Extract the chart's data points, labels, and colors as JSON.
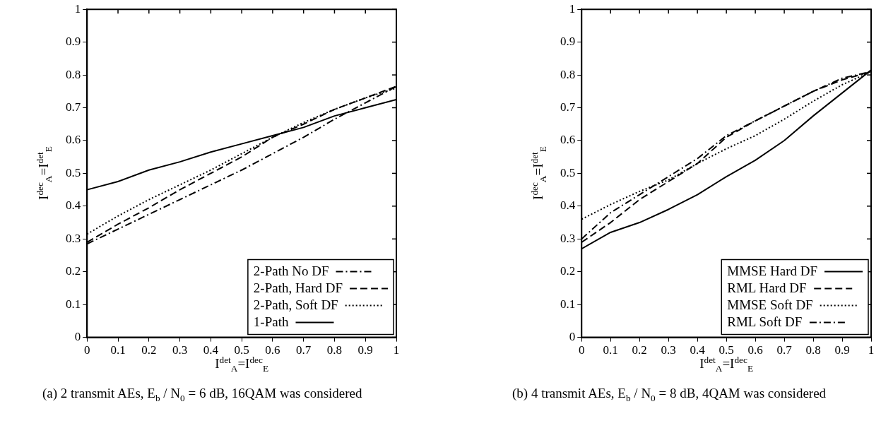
{
  "chart_data": [
    {
      "type": "line",
      "xlabel": "I$^{det}$$_{A}$=I$^{dec}$$_{E}$",
      "ylabel": "I$^{dec}$$_{A}$=I$^{det}$$_{E}$",
      "annotations": [
        "(a) 2 transmit AEs, E$_{b}$ / N$_{0}$ = 6 dB, 16QAM was considered"
      ],
      "x": [
        0,
        0.1,
        0.2,
        0.3,
        0.4,
        0.5,
        0.6,
        0.7,
        0.8,
        0.9,
        1
      ],
      "xlim": [
        0,
        1
      ],
      "ylim": [
        0,
        1
      ],
      "xticks": [
        0,
        0.1,
        0.2,
        0.3,
        0.4,
        0.5,
        0.6,
        0.7,
        0.8,
        0.9,
        1
      ],
      "yticks": [
        0,
        0.1,
        0.2,
        0.3,
        0.4,
        0.5,
        0.6,
        0.7,
        0.8,
        0.9,
        1
      ],
      "legend": "bottom right",
      "series": [
        {
          "name": "2-Path No DF",
          "color": "#000000",
          "line_style": "dashdot",
          "values": [
            0.285,
            0.33,
            0.375,
            0.42,
            0.465,
            0.51,
            0.56,
            0.61,
            0.665,
            0.715,
            0.765
          ]
        },
        {
          "name": "2-Path, Hard DF",
          "color": "#000000",
          "line_style": "dashed",
          "values": [
            0.29,
            0.345,
            0.395,
            0.45,
            0.5,
            0.55,
            0.61,
            0.65,
            0.695,
            0.73,
            0.765
          ]
        },
        {
          "name": "2-Path, Soft DF",
          "color": "#000000",
          "line_style": "dotted",
          "values": [
            0.315,
            0.37,
            0.42,
            0.465,
            0.51,
            0.56,
            0.61,
            0.655,
            0.695,
            0.73,
            0.76
          ]
        },
        {
          "name": "1-Path",
          "color": "#000000",
          "line_style": "solid",
          "values": [
            0.45,
            0.475,
            0.51,
            0.535,
            0.565,
            0.59,
            0.615,
            0.64,
            0.675,
            0.7,
            0.725
          ]
        }
      ]
    },
    {
      "type": "line",
      "xlabel": "I$^{det}$$_{A}$=I$^{dec}$$_{E}$",
      "ylabel": "I$^{dec}$$_{A}$=I$^{det}$$_{E}$",
      "annotations": [
        "(b) 4 transmit AEs, E$_{b}$ / N$_{0}$ = 8 dB, 4QAM was considered"
      ],
      "x": [
        0,
        0.1,
        0.2,
        0.3,
        0.4,
        0.5,
        0.6,
        0.7,
        0.8,
        0.9,
        1
      ],
      "xlim": [
        0,
        1
      ],
      "ylim": [
        0,
        1
      ],
      "xticks": [
        0,
        0.1,
        0.2,
        0.3,
        0.4,
        0.5,
        0.6,
        0.7,
        0.8,
        0.9,
        1
      ],
      "yticks": [
        0,
        0.1,
        0.2,
        0.3,
        0.4,
        0.5,
        0.6,
        0.7,
        0.8,
        0.9,
        1
      ],
      "legend": "bottom right",
      "series": [
        {
          "name": "MMSE Hard DF",
          "color": "#000000",
          "line_style": "solid",
          "values": [
            0.27,
            0.32,
            0.35,
            0.39,
            0.435,
            0.49,
            0.54,
            0.6,
            0.675,
            0.745,
            0.815
          ]
        },
        {
          "name": "RML Hard DF",
          "color": "#000000",
          "line_style": "dashed",
          "values": [
            0.29,
            0.35,
            0.42,
            0.475,
            0.53,
            0.61,
            0.66,
            0.705,
            0.75,
            0.785,
            0.81
          ]
        },
        {
          "name": "MMSE Soft DF",
          "color": "#000000",
          "line_style": "dotted",
          "values": [
            0.36,
            0.405,
            0.445,
            0.48,
            0.53,
            0.575,
            0.615,
            0.665,
            0.72,
            0.77,
            0.81
          ]
        },
        {
          "name": "RML Soft DF",
          "color": "#000000",
          "line_style": "dashdot",
          "values": [
            0.3,
            0.38,
            0.435,
            0.49,
            0.545,
            0.615,
            0.66,
            0.705,
            0.75,
            0.79,
            0.81
          ]
        }
      ]
    }
  ]
}
